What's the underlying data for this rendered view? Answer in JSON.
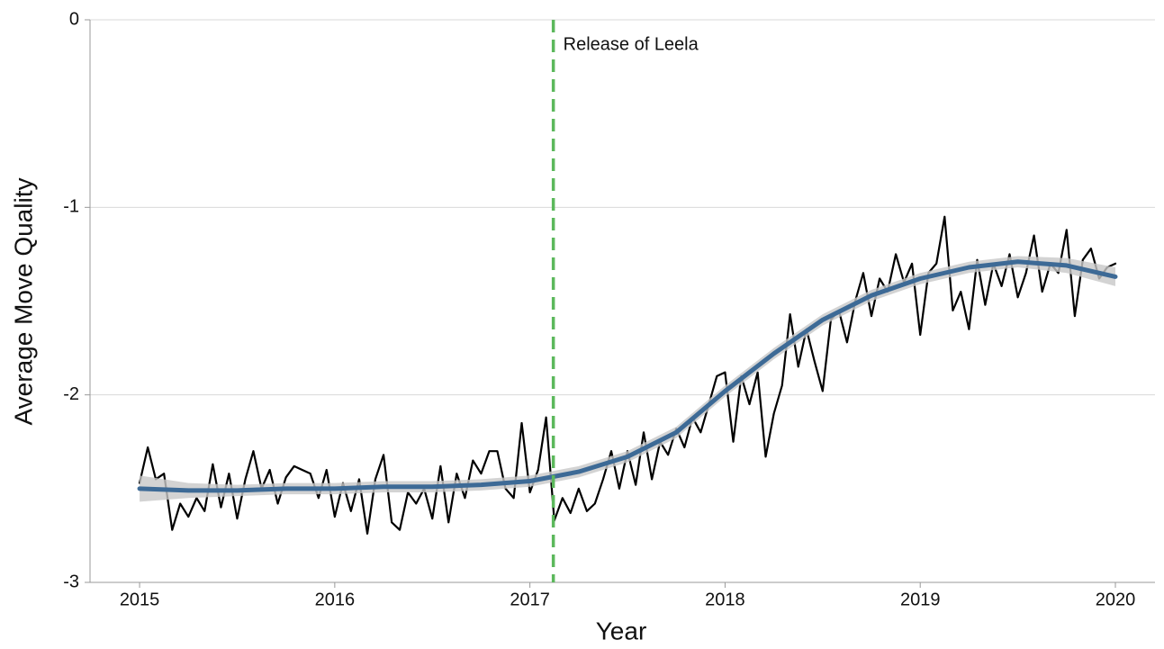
{
  "chart_data": {
    "type": "line",
    "xlabel": "Year",
    "ylabel": "Average Move Quality",
    "xlim": [
      2014.746,
      2020.203
    ],
    "ylim": [
      -3,
      0
    ],
    "xticks": [
      2015,
      2016,
      2017,
      2018,
      2019,
      2020
    ],
    "yticks": [
      0,
      -1,
      -2,
      -3
    ],
    "grid": true,
    "series": [
      {
        "color": "#000000",
        "x": [
          2015,
          2015.042,
          2015.083,
          2015.125,
          2015.167,
          2015.208,
          2015.25,
          2015.292,
          2015.333,
          2015.375,
          2015.417,
          2015.458,
          2015.5,
          2015.542,
          2015.583,
          2015.625,
          2015.667,
          2015.708,
          2015.75,
          2015.792,
          2015.833,
          2015.875,
          2015.917,
          2015.958,
          2016,
          2016.042,
          2016.083,
          2016.125,
          2016.167,
          2016.208,
          2016.25,
          2016.292,
          2016.333,
          2016.375,
          2016.417,
          2016.458,
          2016.5,
          2016.542,
          2016.583,
          2016.625,
          2016.667,
          2016.708,
          2016.75,
          2016.792,
          2016.833,
          2016.875,
          2016.917,
          2016.958,
          2017,
          2017.042,
          2017.083,
          2017.125,
          2017.167,
          2017.208,
          2017.25,
          2017.292,
          2017.333,
          2017.375,
          2017.417,
          2017.458,
          2017.5,
          2017.542,
          2017.583,
          2017.625,
          2017.667,
          2017.708,
          2017.75,
          2017.792,
          2017.833,
          2017.875,
          2017.917,
          2017.958,
          2018,
          2018.042,
          2018.083,
          2018.125,
          2018.167,
          2018.208,
          2018.25,
          2018.292,
          2018.333,
          2018.375,
          2018.417,
          2018.458,
          2018.5,
          2018.542,
          2018.583,
          2018.625,
          2018.667,
          2018.708,
          2018.75,
          2018.792,
          2018.833,
          2018.875,
          2018.917,
          2018.958,
          2019,
          2019.042,
          2019.083,
          2019.125,
          2019.167,
          2019.208,
          2019.25,
          2019.292,
          2019.333,
          2019.375,
          2019.417,
          2019.458,
          2019.5,
          2019.542,
          2019.583,
          2019.625,
          2019.667,
          2019.708,
          2019.75,
          2019.792,
          2019.833,
          2019.875,
          2019.917,
          2019.958,
          2020
        ],
        "values": [
          -2.47,
          -2.28,
          -2.45,
          -2.42,
          -2.72,
          -2.58,
          -2.65,
          -2.55,
          -2.62,
          -2.37,
          -2.6,
          -2.42,
          -2.66,
          -2.45,
          -2.3,
          -2.5,
          -2.4,
          -2.58,
          -2.44,
          -2.38,
          -2.4,
          -2.42,
          -2.55,
          -2.4,
          -2.65,
          -2.47,
          -2.62,
          -2.45,
          -2.74,
          -2.45,
          -2.32,
          -2.68,
          -2.72,
          -2.52,
          -2.58,
          -2.5,
          -2.66,
          -2.38,
          -2.68,
          -2.42,
          -2.55,
          -2.35,
          -2.42,
          -2.3,
          -2.3,
          -2.5,
          -2.55,
          -2.15,
          -2.52,
          -2.4,
          -2.12,
          -2.67,
          -2.55,
          -2.63,
          -2.5,
          -2.62,
          -2.58,
          -2.45,
          -2.3,
          -2.5,
          -2.3,
          -2.48,
          -2.2,
          -2.45,
          -2.25,
          -2.32,
          -2.18,
          -2.28,
          -2.12,
          -2.2,
          -2.05,
          -1.9,
          -1.88,
          -2.25,
          -1.9,
          -2.05,
          -1.88,
          -2.33,
          -2.1,
          -1.95,
          -1.57,
          -1.85,
          -1.65,
          -1.82,
          -1.98,
          -1.6,
          -1.55,
          -1.72,
          -1.5,
          -1.35,
          -1.58,
          -1.38,
          -1.45,
          -1.25,
          -1.4,
          -1.3,
          -1.68,
          -1.35,
          -1.3,
          -1.05,
          -1.55,
          -1.45,
          -1.65,
          -1.28,
          -1.52,
          -1.3,
          -1.42,
          -1.25,
          -1.48,
          -1.35,
          -1.15,
          -1.45,
          -1.3,
          -1.35,
          -1.12,
          -1.58,
          -1.28,
          -1.22,
          -1.38,
          -1.32,
          -1.3
        ]
      },
      {
        "color": "#3d6a96",
        "band_color": "#c8c8c8",
        "x": [
          2015,
          2015.25,
          2015.5,
          2015.75,
          2016,
          2016.25,
          2016.5,
          2016.75,
          2017,
          2017.25,
          2017.5,
          2017.75,
          2018,
          2018.25,
          2018.5,
          2018.75,
          2019,
          2019.25,
          2019.5,
          2019.75,
          2020
        ],
        "values": [
          -2.5,
          -2.51,
          -2.51,
          -2.5,
          -2.5,
          -2.49,
          -2.49,
          -2.48,
          -2.46,
          -2.41,
          -2.33,
          -2.2,
          -1.98,
          -1.78,
          -1.6,
          -1.47,
          -1.38,
          -1.32,
          -1.29,
          -1.31,
          -1.37
        ],
        "band_lower": [
          -2.57,
          -2.55,
          -2.54,
          -2.53,
          -2.53,
          -2.52,
          -2.52,
          -2.51,
          -2.49,
          -2.44,
          -2.36,
          -2.23,
          -2.01,
          -1.81,
          -1.63,
          -1.5,
          -1.41,
          -1.35,
          -1.32,
          -1.35,
          -1.42
        ],
        "band_upper": [
          -2.43,
          -2.47,
          -2.48,
          -2.47,
          -2.47,
          -2.46,
          -2.46,
          -2.45,
          -2.43,
          -2.38,
          -2.3,
          -2.17,
          -1.95,
          -1.75,
          -1.57,
          -1.44,
          -1.35,
          -1.29,
          -1.26,
          -1.27,
          -1.32
        ]
      }
    ],
    "annotations": [
      {
        "text": "Release of Leela",
        "x": 2017.12,
        "color": "#5cb85c"
      }
    ]
  }
}
